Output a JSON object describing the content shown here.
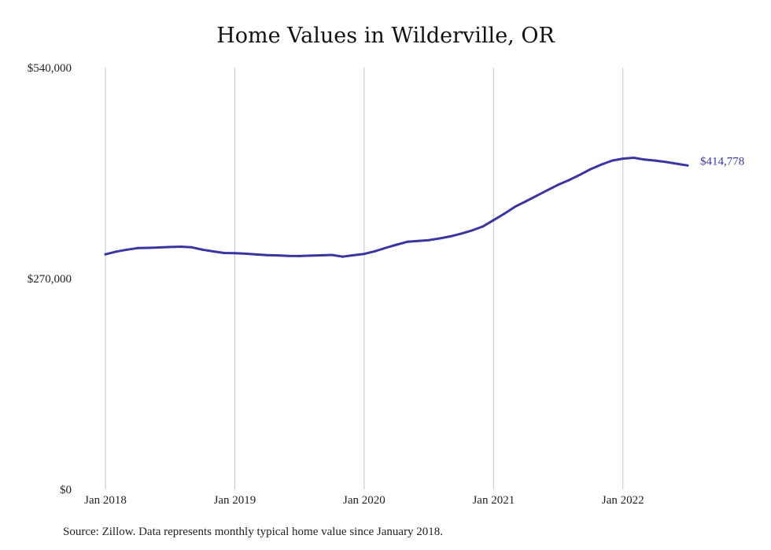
{
  "colors": {
    "line": "#3a35a0",
    "grid": "#c4c4c4",
    "text": "#222222"
  },
  "chart_data": {
    "type": "line",
    "title": "Home Values in Wilderville, OR",
    "xlabel": "",
    "ylabel": "",
    "ylim": [
      0,
      540000
    ],
    "xlim": [
      "2018-01",
      "2022-07"
    ],
    "y_ticks": [
      {
        "value": 0,
        "label": "$0"
      },
      {
        "value": 270000,
        "label": "$270,000"
      },
      {
        "value": 540000,
        "label": "$540,000"
      }
    ],
    "x_ticks": [
      {
        "value": "2018-01",
        "label": "Jan 2018"
      },
      {
        "value": "2019-01",
        "label": "Jan 2019"
      },
      {
        "value": "2020-01",
        "label": "Jan 2020"
      },
      {
        "value": "2021-01",
        "label": "Jan 2021"
      },
      {
        "value": "2022-01",
        "label": "Jan 2022"
      }
    ],
    "grid": {
      "vertical": true,
      "horizontal": false
    },
    "end_label": "$414,778",
    "series": [
      {
        "x": [
          "2018-01",
          "2018-02",
          "2018-03",
          "2018-04",
          "2018-05",
          "2018-06",
          "2018-07",
          "2018-08",
          "2018-09",
          "2018-10",
          "2018-11",
          "2018-12",
          "2019-01",
          "2019-02",
          "2019-03",
          "2019-04",
          "2019-05",
          "2019-06",
          "2019-07",
          "2019-08",
          "2019-09",
          "2019-10",
          "2019-11",
          "2019-12",
          "2020-01",
          "2020-02",
          "2020-03",
          "2020-04",
          "2020-05",
          "2020-06",
          "2020-07",
          "2020-08",
          "2020-09",
          "2020-10",
          "2020-11",
          "2020-12",
          "2021-01",
          "2021-02",
          "2021-03",
          "2021-04",
          "2021-05",
          "2021-06",
          "2021-07",
          "2021-08",
          "2021-09",
          "2021-10",
          "2021-11",
          "2021-12",
          "2022-01",
          "2022-02",
          "2022-03",
          "2022-04",
          "2022-05",
          "2022-06",
          "2022-07"
        ],
        "values": [
          301000,
          304500,
          307000,
          309000,
          309300,
          309800,
          310400,
          310800,
          310000,
          307000,
          304800,
          302700,
          302400,
          301800,
          300800,
          300000,
          299600,
          299000,
          298800,
          299300,
          299700,
          300200,
          298000,
          299800,
          301500,
          305000,
          309300,
          313300,
          317000,
          318200,
          319200,
          321400,
          324000,
          327500,
          331600,
          336600,
          344800,
          353000,
          362000,
          368800,
          376000,
          383100,
          390100,
          396000,
          402800,
          410000,
          416000,
          421000,
          423500,
          424600,
          422300,
          421000,
          419200,
          417000,
          414778
        ]
      }
    ]
  },
  "source_note": "Source: Zillow. Data represents monthly typical home value since January 2018."
}
